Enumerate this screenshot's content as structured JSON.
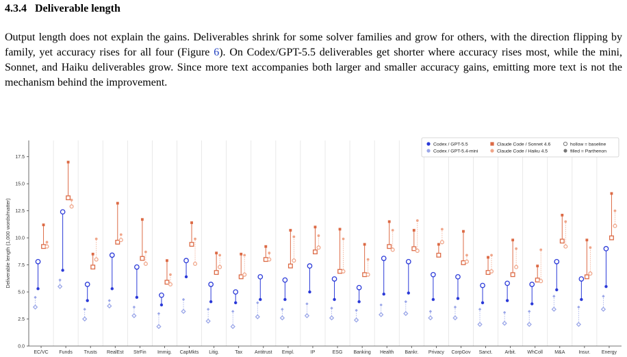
{
  "section": {
    "number": "4.3.4",
    "title": "Deliverable length"
  },
  "paragraph": {
    "before_ref": "Output length does not explain the gains. Deliverables shrink for some solver families and grow for others, with the direction flipping by family, yet accuracy rises for all four (Figure ",
    "ref": "6",
    "after_ref": "). On Codex/GPT-5.5 deliverables get shorter where accuracy rises most, while the mini, Sonnet, and Haiku deliverables grow. Since more text accompanies both larger and smaller accuracy gains, emitting more text is not the mechanism behind the improvement."
  },
  "chart_data": {
    "type": "scatter",
    "ylabel": "Deliverable length (1,000 words/matter)",
    "xlabel": "",
    "ylim": [
      0,
      19
    ],
    "yticks": [
      0.0,
      2.5,
      5.0,
      7.5,
      10.0,
      12.5,
      15.0,
      17.5
    ],
    "grid": "vertical",
    "legend_position": "top-right",
    "colors": {
      "codex": "#2a39d8",
      "mini": "#9aa6e8",
      "sonnet": "#dc6a45",
      "haiku": "#f0a68a",
      "neutral": "#777777"
    },
    "legend": [
      {
        "label": "Codex / GPT-5.5",
        "key": "codex",
        "fill": "filled"
      },
      {
        "label": "Codex / GPT-5.4-mini",
        "key": "mini",
        "fill": "filled"
      },
      {
        "label": "Claude Code / Sonnet 4.6",
        "key": "sonnet",
        "fill": "filled"
      },
      {
        "label": "Claude Code / Haiku 4.5",
        "key": "haiku",
        "fill": "filled"
      },
      {
        "label": "hollow = baseline",
        "key": "neutral",
        "fill": "hollow"
      },
      {
        "label": "filled = Parthenon",
        "key": "neutral",
        "fill": "filled"
      }
    ],
    "categories": [
      "EC/VC",
      "Funds",
      "Trusts",
      "RealEst",
      "StrFin",
      "Immig.",
      "CapMkts",
      "Litig.",
      "Tax",
      "Antitrust",
      "Empl.",
      "IP",
      "ESG",
      "Banking",
      "Health",
      "Bankr.",
      "Privacy",
      "CorpGov",
      "Sanct.",
      "Arbit.",
      "WhColl",
      "M&A",
      "Insur.",
      "Energy"
    ],
    "series": [
      {
        "name": "Codex / GPT-5.5",
        "key": "codex",
        "shape": "circle",
        "baseline": [
          7.8,
          12.4,
          5.7,
          8.4,
          7.3,
          4.7,
          7.9,
          5.7,
          5.0,
          6.4,
          6.1,
          7.4,
          6.2,
          5.4,
          8.1,
          7.8,
          6.6,
          6.4,
          5.6,
          5.8,
          5.7,
          7.8,
          6.2,
          9.0
        ],
        "parthenon": [
          5.3,
          7.0,
          4.2,
          5.3,
          4.5,
          3.8,
          6.4,
          4.1,
          4.0,
          4.3,
          4.3,
          5.0,
          4.3,
          4.1,
          4.8,
          4.9,
          4.3,
          4.4,
          4.0,
          4.2,
          3.9,
          5.2,
          4.3,
          5.5
        ]
      },
      {
        "name": "Codex / GPT-5.4-mini",
        "key": "mini",
        "shape": "diamond",
        "baseline": [
          3.6,
          5.5,
          2.5,
          3.7,
          2.8,
          1.8,
          3.2,
          2.3,
          1.8,
          2.7,
          2.6,
          2.8,
          2.6,
          2.4,
          2.9,
          3.0,
          2.6,
          2.6,
          2.0,
          2.1,
          2.0,
          3.4,
          2.0,
          3.4
        ],
        "parthenon": [
          4.5,
          6.1,
          3.4,
          4.2,
          3.6,
          3.0,
          4.3,
          3.4,
          3.2,
          4.0,
          3.4,
          3.9,
          3.5,
          3.3,
          3.8,
          4.1,
          3.2,
          3.6,
          3.4,
          3.1,
          3.2,
          4.6,
          3.6,
          4.6
        ]
      },
      {
        "name": "Claude Code / Sonnet 4.6",
        "key": "sonnet",
        "shape": "square",
        "baseline": [
          9.2,
          13.7,
          7.3,
          9.6,
          8.1,
          5.9,
          9.4,
          6.8,
          6.4,
          8.0,
          7.4,
          8.7,
          6.9,
          6.6,
          9.2,
          9.0,
          8.4,
          7.7,
          6.8,
          6.6,
          6.1,
          9.7,
          6.4,
          10.0
        ],
        "parthenon": [
          11.2,
          17.0,
          8.5,
          13.2,
          11.7,
          7.9,
          11.4,
          8.6,
          8.5,
          9.2,
          10.7,
          11.0,
          10.8,
          9.4,
          11.5,
          10.7,
          9.4,
          10.6,
          8.2,
          9.8,
          7.4,
          12.1,
          9.8,
          14.1
        ]
      },
      {
        "name": "Claude Code / Haiku 4.5",
        "key": "haiku",
        "shape": "circle",
        "baseline": [
          9.2,
          12.9,
          8.0,
          9.8,
          7.6,
          5.7,
          7.6,
          7.3,
          6.6,
          8.0,
          7.9,
          9.1,
          6.9,
          6.6,
          8.9,
          8.8,
          9.6,
          7.8,
          6.9,
          7.3,
          6.0,
          9.2,
          6.7,
          11.1
        ],
        "parthenon": [
          9.6,
          13.5,
          9.9,
          10.3,
          8.7,
          6.6,
          9.9,
          8.4,
          8.4,
          8.6,
          10.1,
          10.2,
          9.9,
          8.0,
          10.7,
          11.6,
          10.8,
          8.4,
          8.4,
          9.0,
          8.9,
          11.5,
          9.1,
          12.5
        ]
      }
    ]
  }
}
